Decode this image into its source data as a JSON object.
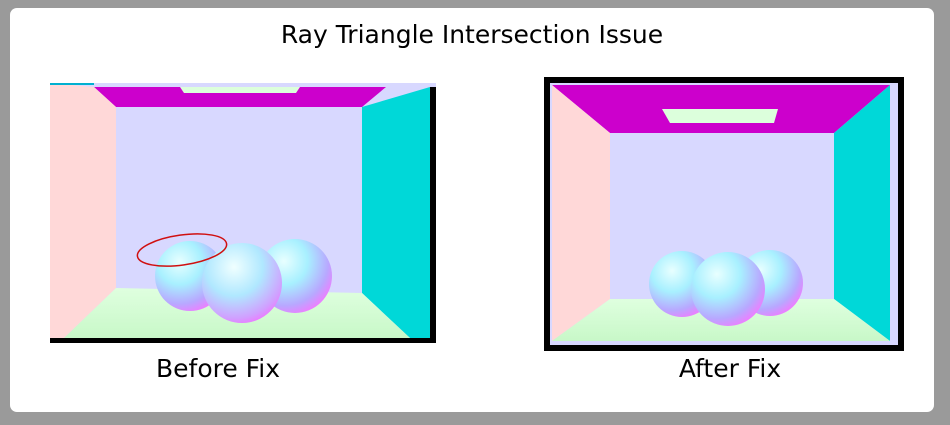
{
  "title": "Ray Triangle Intersection Issue",
  "panels": {
    "before": {
      "caption": "Before Fix"
    },
    "after": {
      "caption": "After Fix"
    }
  },
  "colors": {
    "background": "#9a9a9a",
    "frame": "#ffffff",
    "ceiling": "#cc00cc",
    "left_wall": "#ffd8d8",
    "right_wall": "#00d8d8",
    "back_wall": "#d8d8ff",
    "floor": "#d8ffd8",
    "light": "#dcffdc",
    "annotation": "#d01010",
    "border": "#000000"
  }
}
